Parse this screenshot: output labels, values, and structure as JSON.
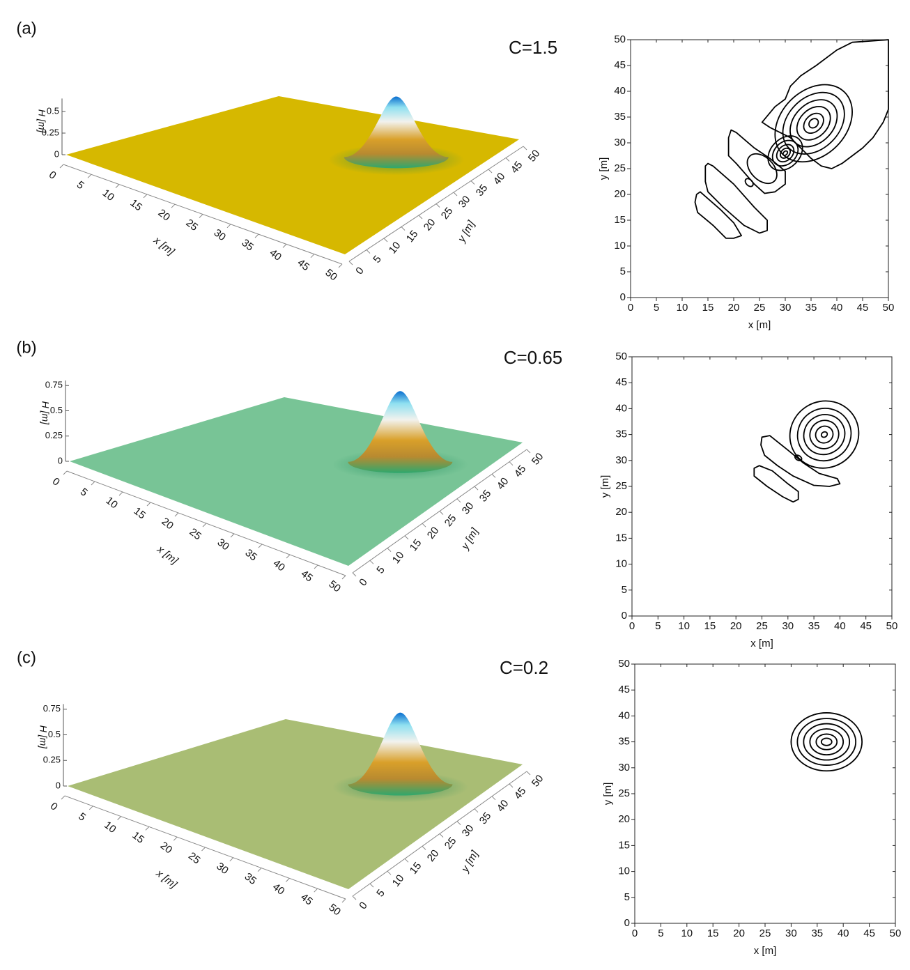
{
  "chart_data": [
    {
      "type": "surface3d",
      "panel": "(a)",
      "title": "C=1.5",
      "xlabel": "x [m]",
      "ylabel": "y [m]",
      "zlabel": "H [m]",
      "xlim": [
        0,
        50
      ],
      "xticks": [
        0,
        5,
        10,
        15,
        20,
        25,
        30,
        35,
        40,
        45,
        50
      ],
      "ylim": [
        0,
        50
      ],
      "yticks": [
        0,
        5,
        10,
        15,
        20,
        25,
        30,
        35,
        40,
        45,
        50
      ],
      "zlim": [
        0,
        0.65
      ],
      "zticks": [
        0,
        0.25,
        0.5
      ],
      "color": "#d6b800",
      "peak": {
        "x": 36,
        "y": 35,
        "H": 0.7
      }
    },
    {
      "type": "contour",
      "xlabel": "x [m]",
      "ylabel": "y [m]",
      "xlim": [
        0,
        50
      ],
      "xticks": [
        0,
        5,
        10,
        15,
        20,
        25,
        30,
        35,
        40,
        45,
        50
      ],
      "ylim": [
        0,
        50
      ],
      "yticks": [
        0,
        5,
        10,
        15,
        20,
        25,
        30,
        35,
        40,
        45,
        50
      ],
      "color": "#000000",
      "ellipses": [
        {
          "cx": 35.5,
          "cy": 33.8,
          "rx": 8.5,
          "ry": 6.3,
          "angle": 45
        },
        {
          "cx": 35.5,
          "cy": 33.8,
          "rx": 6.8,
          "ry": 5,
          "angle": 45
        },
        {
          "cx": 35.5,
          "cy": 33.8,
          "rx": 5.2,
          "ry": 3.8,
          "angle": 45
        },
        {
          "cx": 35.5,
          "cy": 33.8,
          "rx": 3.7,
          "ry": 2.7,
          "angle": 45
        },
        {
          "cx": 35.5,
          "cy": 33.8,
          "rx": 2.2,
          "ry": 1.6,
          "angle": 45
        },
        {
          "cx": 35.5,
          "cy": 33.8,
          "rx": 1,
          "ry": 0.8,
          "angle": 45
        },
        {
          "cx": 30,
          "cy": 28,
          "rx": 3.8,
          "ry": 2.8,
          "angle": 45
        },
        {
          "cx": 30,
          "cy": 28,
          "rx": 2.8,
          "ry": 2.1,
          "angle": 45
        },
        {
          "cx": 30,
          "cy": 28,
          "rx": 1.9,
          "ry": 1.4,
          "angle": 45
        },
        {
          "cx": 30,
          "cy": 28,
          "rx": 1.1,
          "ry": 0.8,
          "angle": 45
        },
        {
          "cx": 30,
          "cy": 28,
          "rx": 0.5,
          "ry": 0.35,
          "angle": 45
        },
        {
          "cx": 25.5,
          "cy": 25,
          "rx": 3.4,
          "ry": 2.2,
          "angle": -45
        },
        {
          "cx": 23,
          "cy": 22.3,
          "rx": 0.9,
          "ry": 0.6,
          "angle": -45
        }
      ],
      "polygons": [
        {
          "x": [
            25.5,
            28,
            30,
            31,
            33,
            36,
            40,
            43,
            50,
            50,
            49,
            47,
            45,
            43,
            41,
            39,
            37,
            35,
            33,
            31,
            29,
            27
          ],
          "y": [
            34,
            37,
            38.5,
            41,
            43,
            45,
            48,
            49.5,
            50,
            36.5,
            34,
            31,
            29,
            27.5,
            26,
            25,
            25.5,
            27,
            29,
            31,
            32,
            33
          ]
        },
        {
          "x": [
            19.5,
            20.5,
            24,
            27,
            30,
            30,
            28,
            26,
            24,
            20.5,
            19,
            19
          ],
          "y": [
            32.5,
            32,
            29,
            27,
            24.5,
            22,
            20.5,
            20.2,
            22,
            26,
            27.5,
            31
          ]
        },
        {
          "x": [
            15,
            16,
            20,
            24,
            26.5,
            26.5,
            25,
            22,
            18,
            15,
            14.5,
            14.5
          ],
          "y": [
            26,
            25.5,
            22,
            17.5,
            15,
            13,
            12.5,
            14,
            17.5,
            20.5,
            22.5,
            25.5
          ]
        },
        {
          "x": [
            12.8,
            13.5,
            17.5,
            20,
            21.5,
            20,
            18.5,
            16,
            13,
            12.5
          ],
          "y": [
            20,
            20.5,
            17,
            14.5,
            12,
            11.5,
            11.5,
            14,
            16.5,
            18.5
          ]
        }
      ]
    },
    {
      "type": "surface3d",
      "panel": "(b)",
      "title": "C=0.65",
      "xlabel": "x [m]",
      "ylabel": "y [m]",
      "zlabel": "H [m]",
      "xlim": [
        0,
        50
      ],
      "xticks": [
        0,
        5,
        10,
        15,
        20,
        25,
        30,
        35,
        40,
        45,
        50
      ],
      "ylim": [
        0,
        50
      ],
      "yticks": [
        0,
        5,
        10,
        15,
        20,
        25,
        30,
        35,
        40,
        45,
        50
      ],
      "zlim": [
        0,
        0.8
      ],
      "zticks": [
        0,
        0.25,
        0.5,
        0.75
      ],
      "color": "#78c496",
      "peak": {
        "x": 36,
        "y": 35,
        "H": 0.7
      }
    },
    {
      "type": "contour",
      "xlabel": "x [m]",
      "ylabel": "y [m]",
      "xlim": [
        0,
        50
      ],
      "xticks": [
        0,
        5,
        10,
        15,
        20,
        25,
        30,
        35,
        40,
        45,
        50
      ],
      "ylim": [
        0,
        50
      ],
      "yticks": [
        0,
        5,
        10,
        15,
        20,
        25,
        30,
        35,
        40,
        45,
        50
      ],
      "color": "#000000",
      "ellipses": [
        {
          "cx": 37,
          "cy": 35,
          "rx": 6.7,
          "ry": 6.4,
          "angle": 30
        },
        {
          "cx": 37,
          "cy": 35,
          "rx": 5.2,
          "ry": 5,
          "angle": 30
        },
        {
          "cx": 37,
          "cy": 35,
          "rx": 4,
          "ry": 3.8,
          "angle": 30
        },
        {
          "cx": 37,
          "cy": 35,
          "rx": 2.8,
          "ry": 2.7,
          "angle": 30
        },
        {
          "cx": 37,
          "cy": 35,
          "rx": 1.7,
          "ry": 1.6,
          "angle": 30
        },
        {
          "cx": 37,
          "cy": 35,
          "rx": 0.6,
          "ry": 0.5,
          "angle": 30
        },
        {
          "cx": 32,
          "cy": 30.5,
          "rx": 0.7,
          "ry": 0.45,
          "angle": -30
        }
      ],
      "polygons": [
        {
          "x": [
            25,
            26.5,
            30,
            33,
            36,
            39.5,
            40,
            38,
            35,
            31,
            28,
            25.5,
            24.8
          ],
          "y": [
            34.5,
            34.8,
            32,
            29.5,
            27.5,
            26.5,
            25.5,
            25,
            25.2,
            27,
            29,
            31,
            33
          ]
        },
        {
          "x": [
            23.5,
            24.5,
            27,
            30,
            32,
            32,
            31,
            29,
            26,
            23.5
          ],
          "y": [
            28.5,
            29,
            28,
            25.5,
            24,
            22.5,
            22,
            23,
            25,
            27
          ]
        }
      ]
    },
    {
      "type": "surface3d",
      "panel": "(c)",
      "title": "C=0.2",
      "xlabel": "x [m]",
      "ylabel": "y [m]",
      "zlabel": "H [m]",
      "xlim": [
        0,
        50
      ],
      "xticks": [
        0,
        5,
        10,
        15,
        20,
        25,
        30,
        35,
        40,
        45,
        50
      ],
      "ylim": [
        0,
        50
      ],
      "yticks": [
        0,
        5,
        10,
        15,
        20,
        25,
        30,
        35,
        40,
        45,
        50
      ],
      "zlim": [
        0,
        0.8
      ],
      "zticks": [
        0,
        0.25,
        0.5,
        0.75
      ],
      "color": "#a9bd74",
      "peak": {
        "x": 36,
        "y": 35,
        "H": 0.7
      }
    },
    {
      "type": "contour",
      "xlabel": "x [m]",
      "ylabel": "y [m]",
      "xlim": [
        0,
        50
      ],
      "xticks": [
        0,
        5,
        10,
        15,
        20,
        25,
        30,
        35,
        40,
        45,
        50
      ],
      "ylim": [
        0,
        50
      ],
      "yticks": [
        0,
        5,
        10,
        15,
        20,
        25,
        30,
        35,
        40,
        45,
        50
      ],
      "color": "#000000",
      "ellipses": [
        {
          "cx": 36.8,
          "cy": 35,
          "rx": 6.8,
          "ry": 5.6,
          "angle": 0
        },
        {
          "cx": 36.8,
          "cy": 35,
          "rx": 5.6,
          "ry": 4.5,
          "angle": 0
        },
        {
          "cx": 36.8,
          "cy": 35,
          "rx": 4.4,
          "ry": 3.5,
          "angle": 0
        },
        {
          "cx": 36.8,
          "cy": 35,
          "rx": 3.2,
          "ry": 2.5,
          "angle": 0
        },
        {
          "cx": 36.8,
          "cy": 35,
          "rx": 2,
          "ry": 1.5,
          "angle": 0
        },
        {
          "cx": 36.8,
          "cy": 35,
          "rx": 1,
          "ry": 0.7,
          "angle": 0
        }
      ],
      "polygons": []
    }
  ]
}
